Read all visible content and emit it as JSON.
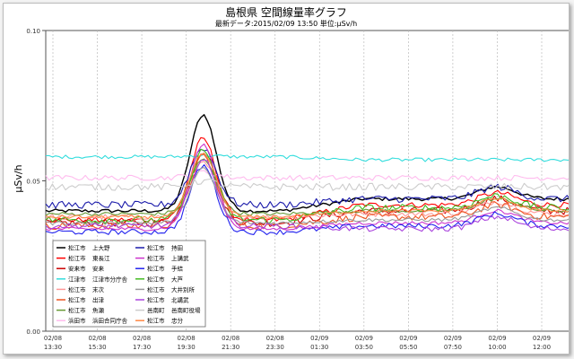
{
  "chart_data": {
    "type": "line",
    "title": "島根県 空間線量率グラフ",
    "subtitle": "最新データ:2015/02/09 13:50 単位:μSv/h",
    "ylabel": "μSv/h",
    "xlabel": "",
    "ylim": [
      0.0,
      0.1
    ],
    "yticks": [
      "0.00",
      "0.05",
      "0.10"
    ],
    "xticks": [
      {
        "date": "02/08",
        "time": "13:30"
      },
      {
        "date": "02/08",
        "time": "15:30"
      },
      {
        "date": "02/08",
        "time": "17:30"
      },
      {
        "date": "02/08",
        "time": "19:30"
      },
      {
        "date": "02/08",
        "time": "21:30"
      },
      {
        "date": "02/08",
        "time": "23:30"
      },
      {
        "date": "02/09",
        "time": "01:30"
      },
      {
        "date": "02/09",
        "time": "03:50"
      },
      {
        "date": "02/09",
        "time": "05:50"
      },
      {
        "date": "02/09",
        "time": "07:50"
      },
      {
        "date": "02/09",
        "time": "10:00"
      },
      {
        "date": "02/09",
        "time": "12:00"
      }
    ],
    "grid": "vertical dashed at each x tick",
    "legend_position": "bottom-left inside plot",
    "series": [
      {
        "city": "松江市",
        "name": "上大野",
        "color": "#000000",
        "base": 0.04,
        "peak": 0.072,
        "end": 0.044
      },
      {
        "city": "松江市",
        "name": "東長江",
        "color": "#ff0000",
        "base": 0.037,
        "peak": 0.064,
        "end": 0.042
      },
      {
        "city": "安来市",
        "name": "安来",
        "color": "#cc0000",
        "base": 0.036,
        "peak": 0.06,
        "end": 0.04
      },
      {
        "city": "江津市",
        "name": "江津市分庁舎",
        "color": "#33dddd",
        "base": 0.058,
        "peak": 0.058,
        "end": 0.057
      },
      {
        "city": "松江市",
        "name": "末次",
        "color": "#ff9999",
        "base": 0.038,
        "peak": 0.056,
        "end": 0.039
      },
      {
        "city": "松江市",
        "name": "出津",
        "color": "#ee5522",
        "base": 0.035,
        "peak": 0.058,
        "end": 0.038
      },
      {
        "city": "松江市",
        "name": "魚瀬",
        "color": "#669933",
        "base": 0.039,
        "peak": 0.057,
        "end": 0.04
      },
      {
        "city": "浜田市",
        "name": "浜田合同庁舎",
        "color": "#ffbbee",
        "base": 0.051,
        "peak": 0.053,
        "end": 0.051
      },
      {
        "city": "松江市",
        "name": "持田",
        "color": "#1a1aaa",
        "base": 0.042,
        "peak": 0.061,
        "end": 0.044
      },
      {
        "city": "松江市",
        "name": "上講武",
        "color": "#cc33cc",
        "base": 0.034,
        "peak": 0.062,
        "end": 0.036
      },
      {
        "city": "松江市",
        "name": "手結",
        "color": "#2222ee",
        "base": 0.033,
        "peak": 0.055,
        "end": 0.035
      },
      {
        "city": "松江市",
        "name": "大芦",
        "color": "#44bb22",
        "base": 0.037,
        "peak": 0.06,
        "end": 0.041
      },
      {
        "city": "松江市",
        "name": "大井別所",
        "color": "#999999",
        "base": 0.036,
        "peak": 0.054,
        "end": 0.037
      },
      {
        "city": "松江市",
        "name": "北講武",
        "color": "#aa44dd",
        "base": 0.035,
        "peak": 0.057,
        "end": 0.034
      },
      {
        "city": "邑南町",
        "name": "邑南町役場",
        "color": "#cccccc",
        "base": 0.048,
        "peak": 0.05,
        "end": 0.048
      },
      {
        "city": "松江市",
        "name": "忠分",
        "color": "#ff8844",
        "base": 0.038,
        "peak": 0.059,
        "end": 0.04
      }
    ]
  }
}
